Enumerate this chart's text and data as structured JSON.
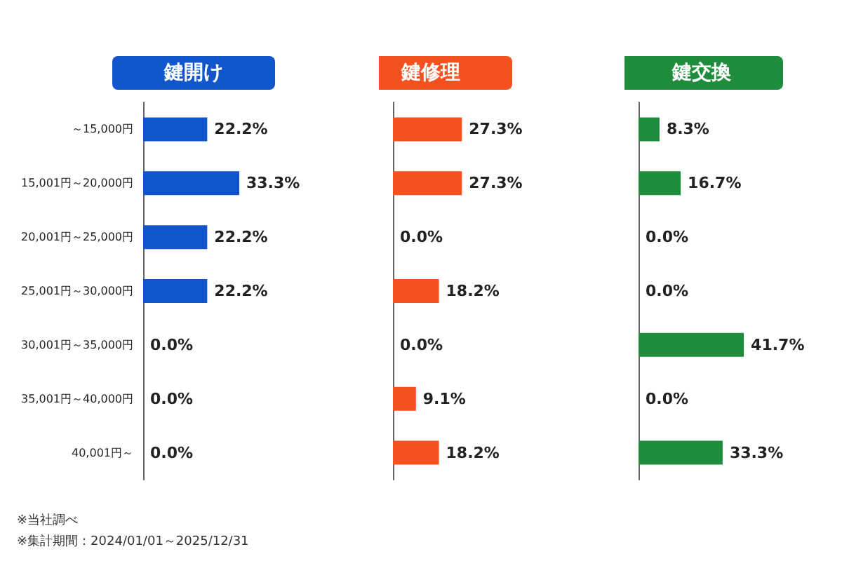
{
  "chart_data": [
    {
      "type": "bar",
      "orientation": "horizontal",
      "title": "鍵開け",
      "categories": [
        "～15,000円",
        "15,001円～20,000円",
        "20,001円～25,000円",
        "25,001円～30,000円",
        "30,001円～35,000円",
        "35,001円～40,000円",
        "40,001円～"
      ],
      "values": [
        22.2,
        33.3,
        22.2,
        22.2,
        0,
        0,
        0
      ],
      "value_labels": [
        "22.2%",
        "33.3%",
        "22.2%",
        "22.2%",
        "0.0%",
        "0.0%",
        "0.0%"
      ],
      "color": "#1155cc",
      "tick_labels": "y",
      "annotations": [
        "※当社調べ",
        "※集計期間：2024/01/01～2025/12/31"
      ]
    },
    {
      "type": "bar",
      "orientation": "horizontal",
      "title": "鍵修理",
      "categories": [
        null,
        null,
        null,
        null,
        null,
        null,
        null
      ],
      "values": [
        27.3,
        27.3,
        0,
        18.2,
        0,
        9.1,
        18.2
      ],
      "value_labels": [
        "27.3%",
        "27.3%",
        "0.0%",
        "18.2%",
        "0.0%",
        "9.1%",
        "18.2%"
      ],
      "color": "#f4511e",
      "tick_labels": false
    },
    {
      "type": "bar",
      "orientation": "horizontal",
      "title": "鍵交換",
      "categories": [
        null,
        null,
        null,
        null,
        null,
        null,
        null
      ],
      "values": [
        8.3,
        16.7,
        0,
        0,
        41.7,
        0,
        33.3
      ],
      "value_labels": [
        "8.3%",
        "16.7%",
        "0.0%",
        "0.0%",
        "41.7%",
        "0.0%",
        "33.3%"
      ],
      "color": "#1e8c3a",
      "tick_labels": false
    }
  ]
}
